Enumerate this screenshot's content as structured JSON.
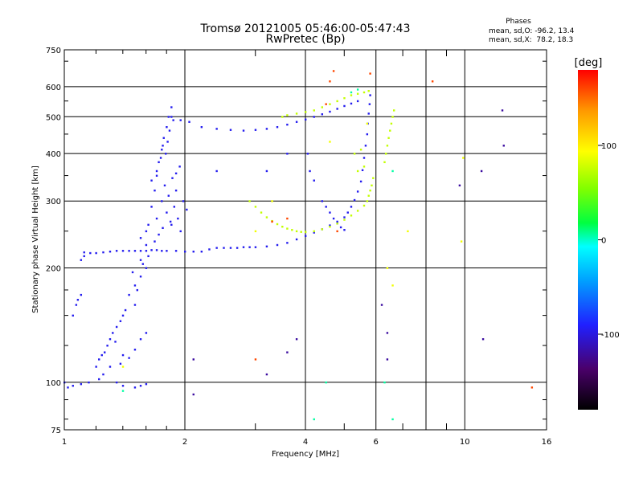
{
  "chart_data": {
    "type": "scatter",
    "title": "Tromsø 20121005 05:46:00-05:47:43",
    "subtitle": "RwPretec (Bp)",
    "xlabel": "Frequency [MHz]",
    "ylabel": "Stationary phase Virtual Height [km]",
    "x_scale": "log",
    "y_scale": "log",
    "xlim": [
      1,
      16
    ],
    "ylim": [
      75,
      750
    ],
    "x_ticks": [
      1,
      2,
      4,
      6,
      10,
      16
    ],
    "x_tick_labels": [
      "1",
      "2",
      "4",
      "6",
      "10",
      "16"
    ],
    "y_ticks": [
      75,
      100,
      200,
      300,
      400,
      500,
      600,
      750
    ],
    "y_tick_labels": [
      "75",
      "100",
      "200",
      "300",
      "400",
      "500",
      "600",
      "750"
    ],
    "grid": true,
    "stats": {
      "heading": "Phases",
      "o_line": "mean, sd,O: -96.2, 13.4",
      "x_line": "mean, sd,X:  78.2, 18.3"
    },
    "colorbar": {
      "label": "[deg]",
      "range": [
        -180,
        180
      ],
      "ticks": [
        -100,
        0,
        100
      ],
      "tick_labels": [
        "-100",
        "0",
        "100"
      ]
    },
    "series": [
      {
        "phase": -95,
        "points": [
          [
            1.12,
            220
          ],
          [
            1.16,
            219
          ],
          [
            1.2,
            219
          ],
          [
            1.25,
            220
          ],
          [
            1.3,
            221
          ],
          [
            1.35,
            222
          ],
          [
            1.4,
            222
          ],
          [
            1.45,
            222
          ],
          [
            1.5,
            222
          ],
          [
            1.55,
            222
          ],
          [
            1.6,
            222
          ],
          [
            1.65,
            223
          ],
          [
            1.7,
            223
          ],
          [
            1.75,
            222
          ],
          [
            1.8,
            222
          ],
          [
            1.9,
            222
          ],
          [
            2.0,
            221
          ],
          [
            2.1,
            221
          ],
          [
            2.2,
            221
          ],
          [
            2.3,
            224
          ],
          [
            2.4,
            226
          ],
          [
            2.5,
            226
          ],
          [
            2.6,
            226
          ],
          [
            2.7,
            226
          ],
          [
            2.8,
            227
          ],
          [
            2.9,
            227
          ],
          [
            3.0,
            227
          ],
          [
            3.2,
            228
          ],
          [
            3.4,
            230
          ],
          [
            3.6,
            233
          ],
          [
            3.8,
            238
          ],
          [
            4.0,
            243
          ],
          [
            4.2,
            248
          ],
          [
            4.4,
            253
          ],
          [
            4.6,
            259
          ],
          [
            4.8,
            265
          ],
          [
            5.0,
            272
          ],
          [
            5.1,
            280
          ],
          [
            5.2,
            290
          ],
          [
            5.3,
            302
          ],
          [
            5.4,
            318
          ],
          [
            5.5,
            338
          ],
          [
            5.55,
            362
          ],
          [
            5.6,
            390
          ],
          [
            5.65,
            420
          ],
          [
            5.7,
            450
          ],
          [
            5.72,
            480
          ],
          [
            5.75,
            510
          ],
          [
            5.78,
            540
          ],
          [
            5.8,
            570
          ],
          [
            1.5,
            160
          ],
          [
            1.52,
            175
          ],
          [
            1.55,
            190
          ],
          [
            1.57,
            205
          ],
          [
            1.6,
            230
          ],
          [
            1.62,
            260
          ],
          [
            1.65,
            290
          ],
          [
            1.68,
            320
          ],
          [
            1.7,
            350
          ],
          [
            1.72,
            380
          ],
          [
            1.75,
            410
          ],
          [
            1.77,
            440
          ],
          [
            1.8,
            470
          ],
          [
            1.82,
            500
          ],
          [
            1.85,
            530
          ],
          [
            1.75,
            300
          ],
          [
            1.8,
            280
          ],
          [
            1.85,
            260
          ],
          [
            1.9,
            320
          ],
          [
            1.7,
            270
          ],
          [
            1.6,
            250
          ],
          [
            1.55,
            240
          ],
          [
            1.65,
            340
          ],
          [
            1.7,
            360
          ],
          [
            1.78,
            330
          ],
          [
            1.82,
            310
          ],
          [
            1.88,
            290
          ],
          [
            1.92,
            270
          ],
          [
            1.95,
            250
          ],
          [
            1.6,
            200
          ],
          [
            1.5,
            180
          ],
          [
            1.45,
            170
          ],
          [
            1.55,
            210
          ],
          [
            1.48,
            195
          ],
          [
            1.62,
            215
          ],
          [
            1.68,
            235
          ],
          [
            1.72,
            245
          ],
          [
            1.76,
            255
          ],
          [
            1.84,
            265
          ],
          [
            1.86,
            345
          ],
          [
            1.9,
            355
          ],
          [
            1.94,
            370
          ],
          [
            1.98,
            300
          ],
          [
            2.02,
            285
          ],
          [
            1.76,
            420
          ],
          [
            1.74,
            390
          ],
          [
            1.79,
            400
          ],
          [
            1.81,
            430
          ],
          [
            1.83,
            460
          ],
          [
            1.87,
            490
          ],
          [
            1.4,
            150
          ],
          [
            1.35,
            140
          ],
          [
            1.3,
            130
          ],
          [
            1.28,
            125
          ],
          [
            1.38,
            145
          ],
          [
            1.42,
            155
          ],
          [
            1.32,
            135
          ],
          [
            1.26,
            120
          ],
          [
            1.34,
            128
          ],
          [
            1.4,
            118
          ],
          [
            1.38,
            112
          ],
          [
            1.45,
            116
          ],
          [
            1.5,
            122
          ],
          [
            1.55,
            130
          ],
          [
            1.6,
            135
          ],
          [
            1.3,
            110
          ],
          [
            1.25,
            105
          ],
          [
            1.22,
            102
          ],
          [
            1.35,
            100
          ],
          [
            1.4,
            98
          ],
          [
            1.5,
            97
          ],
          [
            1.55,
            98
          ],
          [
            1.6,
            99
          ],
          [
            1.15,
            100
          ],
          [
            1.1,
            99
          ],
          [
            1.05,
            98
          ],
          [
            1.02,
            97
          ],
          [
            1.0,
            100
          ],
          [
            1.05,
            150
          ],
          [
            1.07,
            160
          ],
          [
            1.08,
            165
          ],
          [
            1.1,
            170
          ],
          [
            1.2,
            110
          ],
          [
            1.22,
            115
          ],
          [
            1.24,
            118
          ],
          [
            1.85,
            500
          ],
          [
            1.95,
            490
          ],
          [
            2.05,
            485
          ],
          [
            2.2,
            470
          ],
          [
            2.4,
            465
          ],
          [
            2.6,
            462
          ],
          [
            2.8,
            460
          ],
          [
            3.0,
            462
          ],
          [
            3.2,
            465
          ],
          [
            3.4,
            470
          ],
          [
            3.6,
            477
          ],
          [
            3.8,
            485
          ],
          [
            4.0,
            492
          ],
          [
            4.2,
            500
          ],
          [
            4.4,
            508
          ],
          [
            4.6,
            516
          ],
          [
            4.8,
            525
          ],
          [
            5.0,
            534
          ],
          [
            5.2,
            542
          ],
          [
            5.4,
            550
          ],
          [
            4.4,
            300
          ],
          [
            4.5,
            290
          ],
          [
            4.6,
            280
          ],
          [
            4.7,
            270
          ],
          [
            4.8,
            262
          ],
          [
            4.9,
            256
          ],
          [
            5.0,
            252
          ],
          [
            4.2,
            340
          ],
          [
            4.1,
            360
          ],
          [
            4.05,
            400
          ],
          [
            3.6,
            400
          ],
          [
            3.2,
            360
          ],
          [
            2.4,
            360
          ],
          [
            1.12,
            215
          ],
          [
            1.1,
            210
          ]
        ]
      },
      {
        "phase": 75,
        "points": [
          [
            2.9,
            300
          ],
          [
            3.0,
            290
          ],
          [
            3.1,
            280
          ],
          [
            3.2,
            272
          ],
          [
            3.3,
            266
          ],
          [
            3.4,
            261
          ],
          [
            3.5,
            257
          ],
          [
            3.6,
            254
          ],
          [
            3.7,
            252
          ],
          [
            3.8,
            250
          ],
          [
            3.9,
            249
          ],
          [
            4.0,
            249
          ],
          [
            4.2,
            250
          ],
          [
            4.4,
            253
          ],
          [
            4.6,
            257
          ],
          [
            4.8,
            262
          ],
          [
            5.0,
            268
          ],
          [
            5.2,
            275
          ],
          [
            5.4,
            283
          ],
          [
            5.6,
            292
          ],
          [
            5.7,
            300
          ],
          [
            5.75,
            310
          ],
          [
            5.8,
            320
          ],
          [
            5.85,
            330
          ],
          [
            5.9,
            345
          ],
          [
            3.5,
            500
          ],
          [
            3.6,
            505
          ],
          [
            3.8,
            510
          ],
          [
            4.0,
            515
          ],
          [
            4.2,
            520
          ],
          [
            4.4,
            530
          ],
          [
            4.6,
            540
          ],
          [
            4.8,
            550
          ],
          [
            5.0,
            560
          ],
          [
            5.2,
            570
          ],
          [
            5.4,
            575
          ],
          [
            5.6,
            580
          ],
          [
            5.75,
            585
          ],
          [
            6.3,
            380
          ],
          [
            6.35,
            400
          ],
          [
            6.4,
            420
          ],
          [
            6.45,
            440
          ],
          [
            6.5,
            460
          ],
          [
            6.55,
            480
          ],
          [
            6.6,
            500
          ],
          [
            6.65,
            520
          ],
          [
            5.3,
            400
          ],
          [
            5.5,
            410
          ],
          [
            5.4,
            360
          ],
          [
            5.6,
            370
          ]
        ]
      },
      {
        "phase": 160,
        "points": [
          [
            3.0,
            115
          ],
          [
            8.3,
            620
          ],
          [
            4.7,
            660
          ],
          [
            4.6,
            620
          ],
          [
            14.7,
            97
          ],
          [
            3.3,
            265
          ],
          [
            4.5,
            540
          ],
          [
            5.8,
            650
          ],
          [
            3.6,
            270
          ],
          [
            4.8,
            250
          ]
        ]
      },
      {
        "phase": 90,
        "points": [
          [
            7.2,
            250
          ],
          [
            9.9,
            390
          ],
          [
            9.8,
            235
          ],
          [
            5.7,
            480
          ],
          [
            6.4,
            200
          ],
          [
            6.6,
            180
          ],
          [
            3.0,
            250
          ],
          [
            3.3,
            300
          ],
          [
            1.4,
            110
          ],
          [
            4.6,
            430
          ]
        ]
      },
      {
        "phase": 5,
        "points": [
          [
            6.6,
            80
          ],
          [
            6.3,
            100
          ],
          [
            6.6,
            360
          ],
          [
            4.5,
            100
          ],
          [
            4.2,
            80
          ],
          [
            1.4,
            95
          ],
          [
            5.2,
            580
          ],
          [
            5.4,
            590
          ]
        ]
      },
      {
        "phase": -120,
        "points": [
          [
            11.0,
            360
          ],
          [
            11.1,
            130
          ],
          [
            12.4,
            520
          ],
          [
            12.5,
            420
          ],
          [
            9.7,
            330
          ],
          [
            6.4,
            135
          ],
          [
            6.2,
            160
          ],
          [
            6.4,
            115
          ],
          [
            3.8,
            130
          ],
          [
            3.6,
            120
          ],
          [
            2.1,
            93
          ],
          [
            2.1,
            115
          ],
          [
            3.2,
            105
          ]
        ]
      }
    ]
  }
}
